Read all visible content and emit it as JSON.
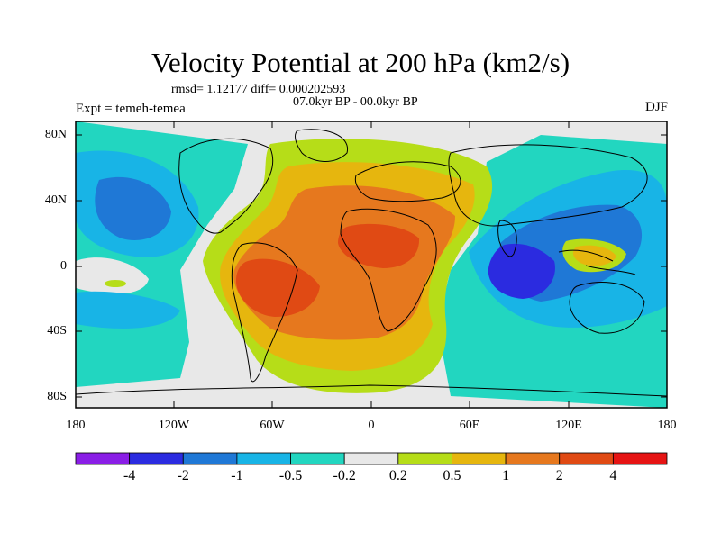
{
  "title": "Velocity Potential at 200 hPa (km2/s)",
  "subtitle": {
    "rmsd": "rmsd= 1.12177 diff= 0.000202593",
    "period": "07.0kyr BP - 00.0kyr BP",
    "experiment": "Expt = temeh-temea",
    "season": "DJF"
  },
  "axes": {
    "y_ticks": [
      "80N",
      "40N",
      "0",
      "40S",
      "80S"
    ],
    "x_ticks": [
      "180",
      "120W",
      "60W",
      "0",
      "60E",
      "120E",
      "180"
    ]
  },
  "colorbar": {
    "labels": [
      "-4",
      "-2",
      "-1",
      "-0.5",
      "-0.2",
      "0.2",
      "0.5",
      "1",
      "2",
      "4"
    ],
    "colors": [
      "#8a1ee6",
      "#2b2be0",
      "#1f78d6",
      "#18b4e6",
      "#22d6c0",
      "#e8e8e8",
      "#b6dd18",
      "#e6b60e",
      "#e6781e",
      "#e04a14",
      "#e61414"
    ]
  },
  "colors": {
    "land_outline": "#000000",
    "neutral": "#e8e8e8"
  }
}
